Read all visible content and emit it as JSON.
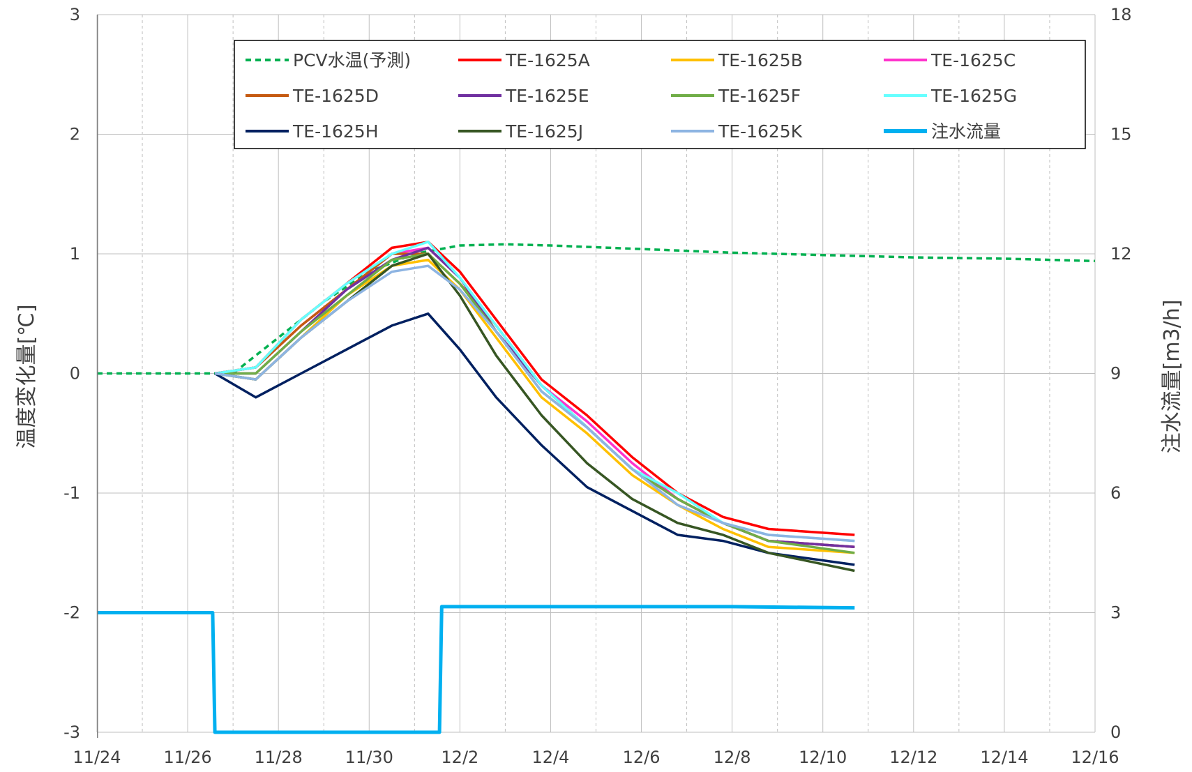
{
  "chart_data": {
    "type": "line",
    "title": "",
    "ylabel": "温度変化量[℃]",
    "y2label": "注水流量[m3/h]",
    "xlim": [
      "11/24",
      "12/16"
    ],
    "ylim": [
      -3,
      3
    ],
    "y2lim": [
      0,
      18
    ],
    "x_ticks": [
      "11/24",
      "11/26",
      "11/28",
      "11/30",
      "12/2",
      "12/4",
      "12/6",
      "12/8",
      "12/10",
      "12/12",
      "12/14",
      "12/16"
    ],
    "y_ticks": [
      "3",
      "2",
      "1",
      "0",
      "-1",
      "-2",
      "-3"
    ],
    "y2_ticks": [
      "18",
      "15",
      "12",
      "9",
      "6",
      "3",
      "0"
    ],
    "grid": true,
    "legend_placement": "top",
    "series": [
      {
        "name": "PCV水温(予測)",
        "axis": "left",
        "color": "#00B050",
        "dash": true,
        "points": [
          [
            0,
            0
          ],
          [
            2.5,
            0
          ],
          [
            3.0,
            0
          ],
          [
            4.0,
            0.3
          ],
          [
            5.0,
            0.6
          ],
          [
            6.0,
            0.85
          ],
          [
            7.0,
            1.0
          ],
          [
            8.0,
            1.07
          ],
          [
            9.0,
            1.08
          ],
          [
            10.0,
            1.07
          ],
          [
            12.0,
            1.04
          ],
          [
            14.0,
            1.01
          ],
          [
            16.0,
            0.99
          ],
          [
            18.0,
            0.97
          ],
          [
            20.0,
            0.96
          ],
          [
            22.0,
            0.94
          ]
        ]
      },
      {
        "name": "TE-1625A",
        "axis": "left",
        "color": "#FF0000",
        "dash": false,
        "points": [
          [
            2.6,
            0
          ],
          [
            3.5,
            0.05
          ],
          [
            4.5,
            0.45
          ],
          [
            5.5,
            0.75
          ],
          [
            6.5,
            1.05
          ],
          [
            7.3,
            1.1
          ],
          [
            8.0,
            0.85
          ],
          [
            8.8,
            0.45
          ],
          [
            9.8,
            -0.05
          ],
          [
            10.8,
            -0.35
          ],
          [
            11.8,
            -0.7
          ],
          [
            12.8,
            -1.0
          ],
          [
            13.8,
            -1.2
          ],
          [
            14.8,
            -1.3
          ],
          [
            16.7,
            -1.35
          ]
        ]
      },
      {
        "name": "TE-1625B",
        "axis": "left",
        "color": "#FFC000",
        "dash": false,
        "points": [
          [
            2.6,
            0
          ],
          [
            3.5,
            -0.05
          ],
          [
            4.5,
            0.3
          ],
          [
            5.5,
            0.65
          ],
          [
            6.5,
            0.9
          ],
          [
            7.3,
            0.95
          ],
          [
            8.0,
            0.7
          ],
          [
            8.8,
            0.3
          ],
          [
            9.8,
            -0.2
          ],
          [
            10.8,
            -0.5
          ],
          [
            11.8,
            -0.85
          ],
          [
            12.8,
            -1.1
          ],
          [
            13.8,
            -1.3
          ],
          [
            14.8,
            -1.45
          ],
          [
            16.7,
            -1.5
          ]
        ]
      },
      {
        "name": "TE-1625C",
        "axis": "left",
        "color": "#FF33CC",
        "dash": false,
        "points": [
          [
            2.6,
            0
          ],
          [
            3.5,
            0.05
          ],
          [
            4.5,
            0.4
          ],
          [
            5.5,
            0.7
          ],
          [
            6.5,
            1.0
          ],
          [
            7.3,
            1.05
          ],
          [
            8.0,
            0.8
          ],
          [
            8.8,
            0.4
          ],
          [
            9.8,
            -0.1
          ],
          [
            10.8,
            -0.4
          ],
          [
            11.8,
            -0.75
          ],
          [
            12.8,
            -1.05
          ],
          [
            13.8,
            -1.25
          ],
          [
            14.8,
            -1.4
          ],
          [
            16.7,
            -1.45
          ]
        ]
      },
      {
        "name": "TE-1625D",
        "axis": "left",
        "color": "#C55A11",
        "dash": false,
        "points": [
          [
            2.6,
            0
          ],
          [
            3.5,
            0.05
          ],
          [
            4.5,
            0.4
          ],
          [
            5.5,
            0.7
          ],
          [
            6.5,
            1.0
          ],
          [
            7.3,
            1.0
          ],
          [
            8.0,
            0.75
          ],
          [
            8.8,
            0.4
          ],
          [
            9.8,
            -0.1
          ],
          [
            10.8,
            -0.45
          ],
          [
            11.8,
            -0.8
          ],
          [
            12.8,
            -1.05
          ],
          [
            13.8,
            -1.25
          ],
          [
            14.8,
            -1.4
          ],
          [
            16.7,
            -1.45
          ]
        ]
      },
      {
        "name": "TE-1625E",
        "axis": "left",
        "color": "#7030A0",
        "dash": false,
        "points": [
          [
            2.6,
            0
          ],
          [
            3.5,
            0.0
          ],
          [
            4.5,
            0.35
          ],
          [
            5.5,
            0.7
          ],
          [
            6.5,
            0.95
          ],
          [
            7.3,
            1.05
          ],
          [
            8.0,
            0.8
          ],
          [
            8.8,
            0.35
          ],
          [
            9.8,
            -0.1
          ],
          [
            10.8,
            -0.45
          ],
          [
            11.8,
            -0.8
          ],
          [
            12.8,
            -1.05
          ],
          [
            13.8,
            -1.25
          ],
          [
            14.8,
            -1.4
          ],
          [
            16.7,
            -1.45
          ]
        ]
      },
      {
        "name": "TE-1625F",
        "axis": "left",
        "color": "#70AD47",
        "dash": false,
        "points": [
          [
            2.6,
            0
          ],
          [
            3.5,
            0.0
          ],
          [
            4.5,
            0.35
          ],
          [
            5.5,
            0.65
          ],
          [
            6.5,
            0.95
          ],
          [
            7.3,
            1.0
          ],
          [
            8.0,
            0.75
          ],
          [
            8.8,
            0.35
          ],
          [
            9.8,
            -0.15
          ],
          [
            10.8,
            -0.45
          ],
          [
            11.8,
            -0.8
          ],
          [
            12.8,
            -1.05
          ],
          [
            13.8,
            -1.25
          ],
          [
            14.8,
            -1.4
          ],
          [
            16.7,
            -1.5
          ]
        ]
      },
      {
        "name": "TE-1625G",
        "axis": "left",
        "color": "#66FFFF",
        "dash": false,
        "points": [
          [
            2.6,
            0
          ],
          [
            3.5,
            0.05
          ],
          [
            4.5,
            0.45
          ],
          [
            5.5,
            0.75
          ],
          [
            6.5,
            1.0
          ],
          [
            7.3,
            1.1
          ],
          [
            8.0,
            0.8
          ],
          [
            8.8,
            0.4
          ],
          [
            9.8,
            -0.1
          ],
          [
            10.8,
            -0.45
          ],
          [
            11.8,
            -0.8
          ],
          [
            12.8,
            -1.0
          ],
          [
            13.8,
            -1.25
          ],
          [
            14.8,
            -1.35
          ],
          [
            16.7,
            -1.4
          ]
        ]
      },
      {
        "name": "TE-1625H",
        "axis": "left",
        "color": "#002060",
        "dash": false,
        "points": [
          [
            2.6,
            0
          ],
          [
            3.5,
            -0.2
          ],
          [
            4.5,
            0
          ],
          [
            5.5,
            0.2
          ],
          [
            6.5,
            0.4
          ],
          [
            7.3,
            0.5
          ],
          [
            8.0,
            0.2
          ],
          [
            8.8,
            -0.2
          ],
          [
            9.8,
            -0.6
          ],
          [
            10.8,
            -0.95
          ],
          [
            11.8,
            -1.15
          ],
          [
            12.8,
            -1.35
          ],
          [
            13.8,
            -1.4
          ],
          [
            14.8,
            -1.5
          ],
          [
            16.7,
            -1.6
          ]
        ]
      },
      {
        "name": "TE-1625J",
        "axis": "left",
        "color": "#375623",
        "dash": false,
        "points": [
          [
            2.6,
            0
          ],
          [
            3.5,
            -0.05
          ],
          [
            4.5,
            0.3
          ],
          [
            5.5,
            0.6
          ],
          [
            6.5,
            0.9
          ],
          [
            7.3,
            1.0
          ],
          [
            8.0,
            0.65
          ],
          [
            8.8,
            0.15
          ],
          [
            9.8,
            -0.35
          ],
          [
            10.8,
            -0.75
          ],
          [
            11.8,
            -1.05
          ],
          [
            12.8,
            -1.25
          ],
          [
            13.8,
            -1.35
          ],
          [
            14.8,
            -1.5
          ],
          [
            16.7,
            -1.65
          ]
        ]
      },
      {
        "name": "TE-1625K",
        "axis": "left",
        "color": "#8DB4E2",
        "dash": false,
        "points": [
          [
            2.6,
            0
          ],
          [
            3.5,
            -0.05
          ],
          [
            4.5,
            0.3
          ],
          [
            5.5,
            0.6
          ],
          [
            6.5,
            0.85
          ],
          [
            7.3,
            0.9
          ],
          [
            8.0,
            0.7
          ],
          [
            8.8,
            0.35
          ],
          [
            9.8,
            -0.15
          ],
          [
            10.8,
            -0.45
          ],
          [
            11.8,
            -0.8
          ],
          [
            12.8,
            -1.1
          ],
          [
            13.8,
            -1.25
          ],
          [
            14.8,
            -1.35
          ],
          [
            16.7,
            -1.4
          ]
        ]
      },
      {
        "name": "注水流量",
        "axis": "right",
        "color": "#00B0F0",
        "dash": false,
        "wide": true,
        "points": [
          [
            0,
            3.0
          ],
          [
            2.55,
            3.0
          ],
          [
            2.6,
            0
          ],
          [
            7.55,
            0
          ],
          [
            7.6,
            3.15
          ],
          [
            10,
            3.15
          ],
          [
            12,
            3.15
          ],
          [
            14,
            3.15
          ],
          [
            16.7,
            3.12
          ]
        ]
      }
    ]
  }
}
